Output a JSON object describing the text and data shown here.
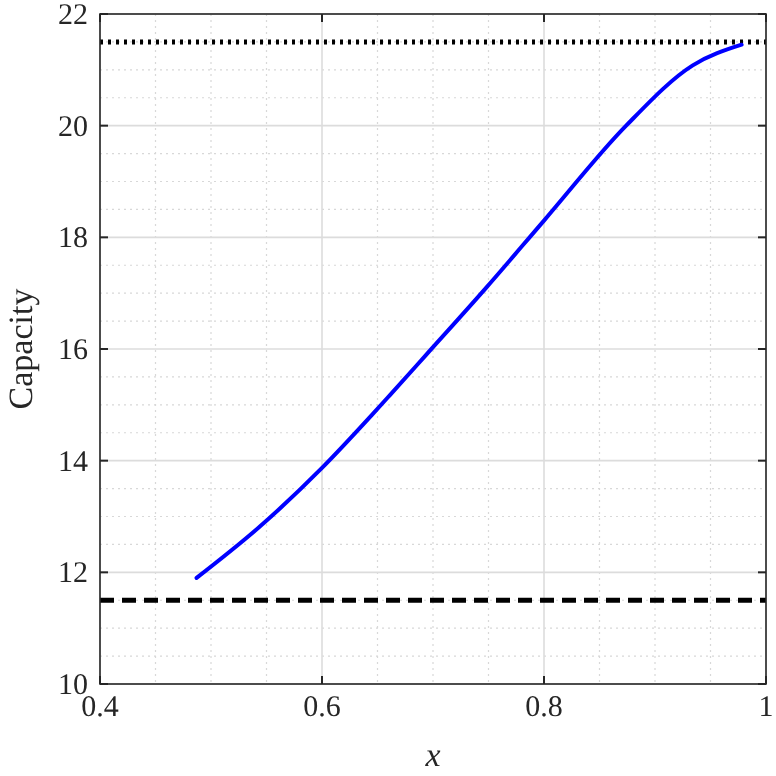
{
  "chart_data": {
    "type": "line",
    "xlabel": "x",
    "ylabel": "Capacity",
    "x": [
      0.487,
      0.544,
      0.6,
      0.645,
      0.661,
      0.694,
      0.748,
      0.8,
      0.874,
      0.934,
      0.978
    ],
    "series": [
      {
        "color": "#0000ff",
        "values": [
          11.9,
          12.82,
          13.87,
          14.82,
          15.17,
          15.9,
          17.1,
          18.3,
          20.0,
          21.08,
          21.45
        ]
      }
    ],
    "xlim": [
      0.4,
      1
    ],
    "xticks": [
      0.4,
      0.6,
      0.8,
      1
    ],
    "ylim": [
      10,
      22
    ],
    "yticks": [
      10,
      12,
      14,
      16,
      18,
      20,
      22
    ],
    "grid": true,
    "line_style": "solid",
    "marker": "none",
    "ref_lines": [
      {
        "axis": "y",
        "value": 21.5,
        "color": "#000000",
        "line_style": "dotted"
      },
      {
        "axis": "y",
        "value": 11.5,
        "color": "#000000",
        "line_style": "dashed"
      }
    ]
  }
}
